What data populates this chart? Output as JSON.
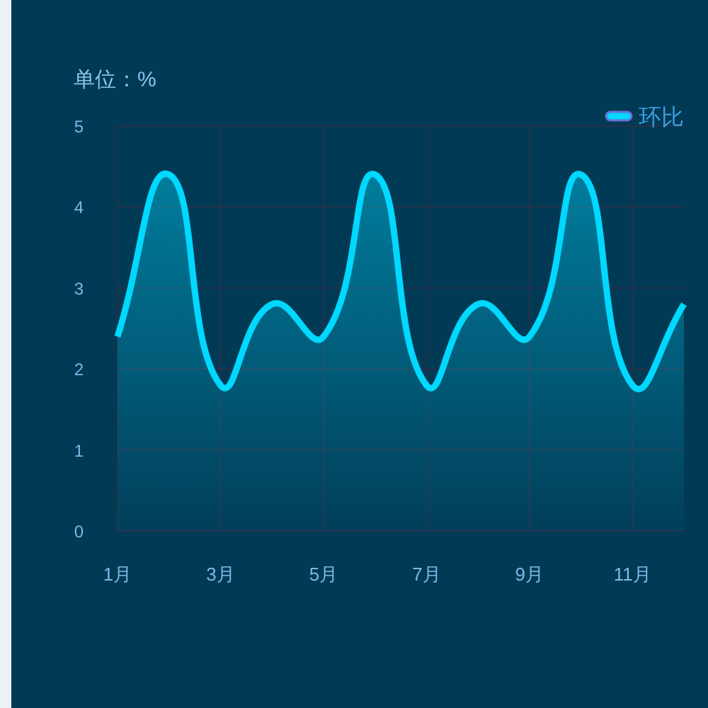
{
  "chart_data": {
    "type": "area",
    "ylabel": "单位：%",
    "categories": [
      "1月",
      null,
      "3月",
      null,
      "5月",
      null,
      "7月",
      null,
      "9月",
      null,
      "11月",
      null
    ],
    "series": [
      {
        "name": "环比",
        "color": "#00d8ff",
        "values": [
          2.4,
          4.4,
          1.8,
          2.8,
          2.4,
          4.4,
          1.8,
          2.8,
          2.4,
          4.4,
          1.8,
          2.8
        ]
      }
    ],
    "ylim": [
      0,
      5
    ],
    "yticks": [
      0,
      1,
      2,
      3,
      4,
      5
    ],
    "grid": true,
    "legend": "top right",
    "marker": "none",
    "line_style": "solid"
  }
}
